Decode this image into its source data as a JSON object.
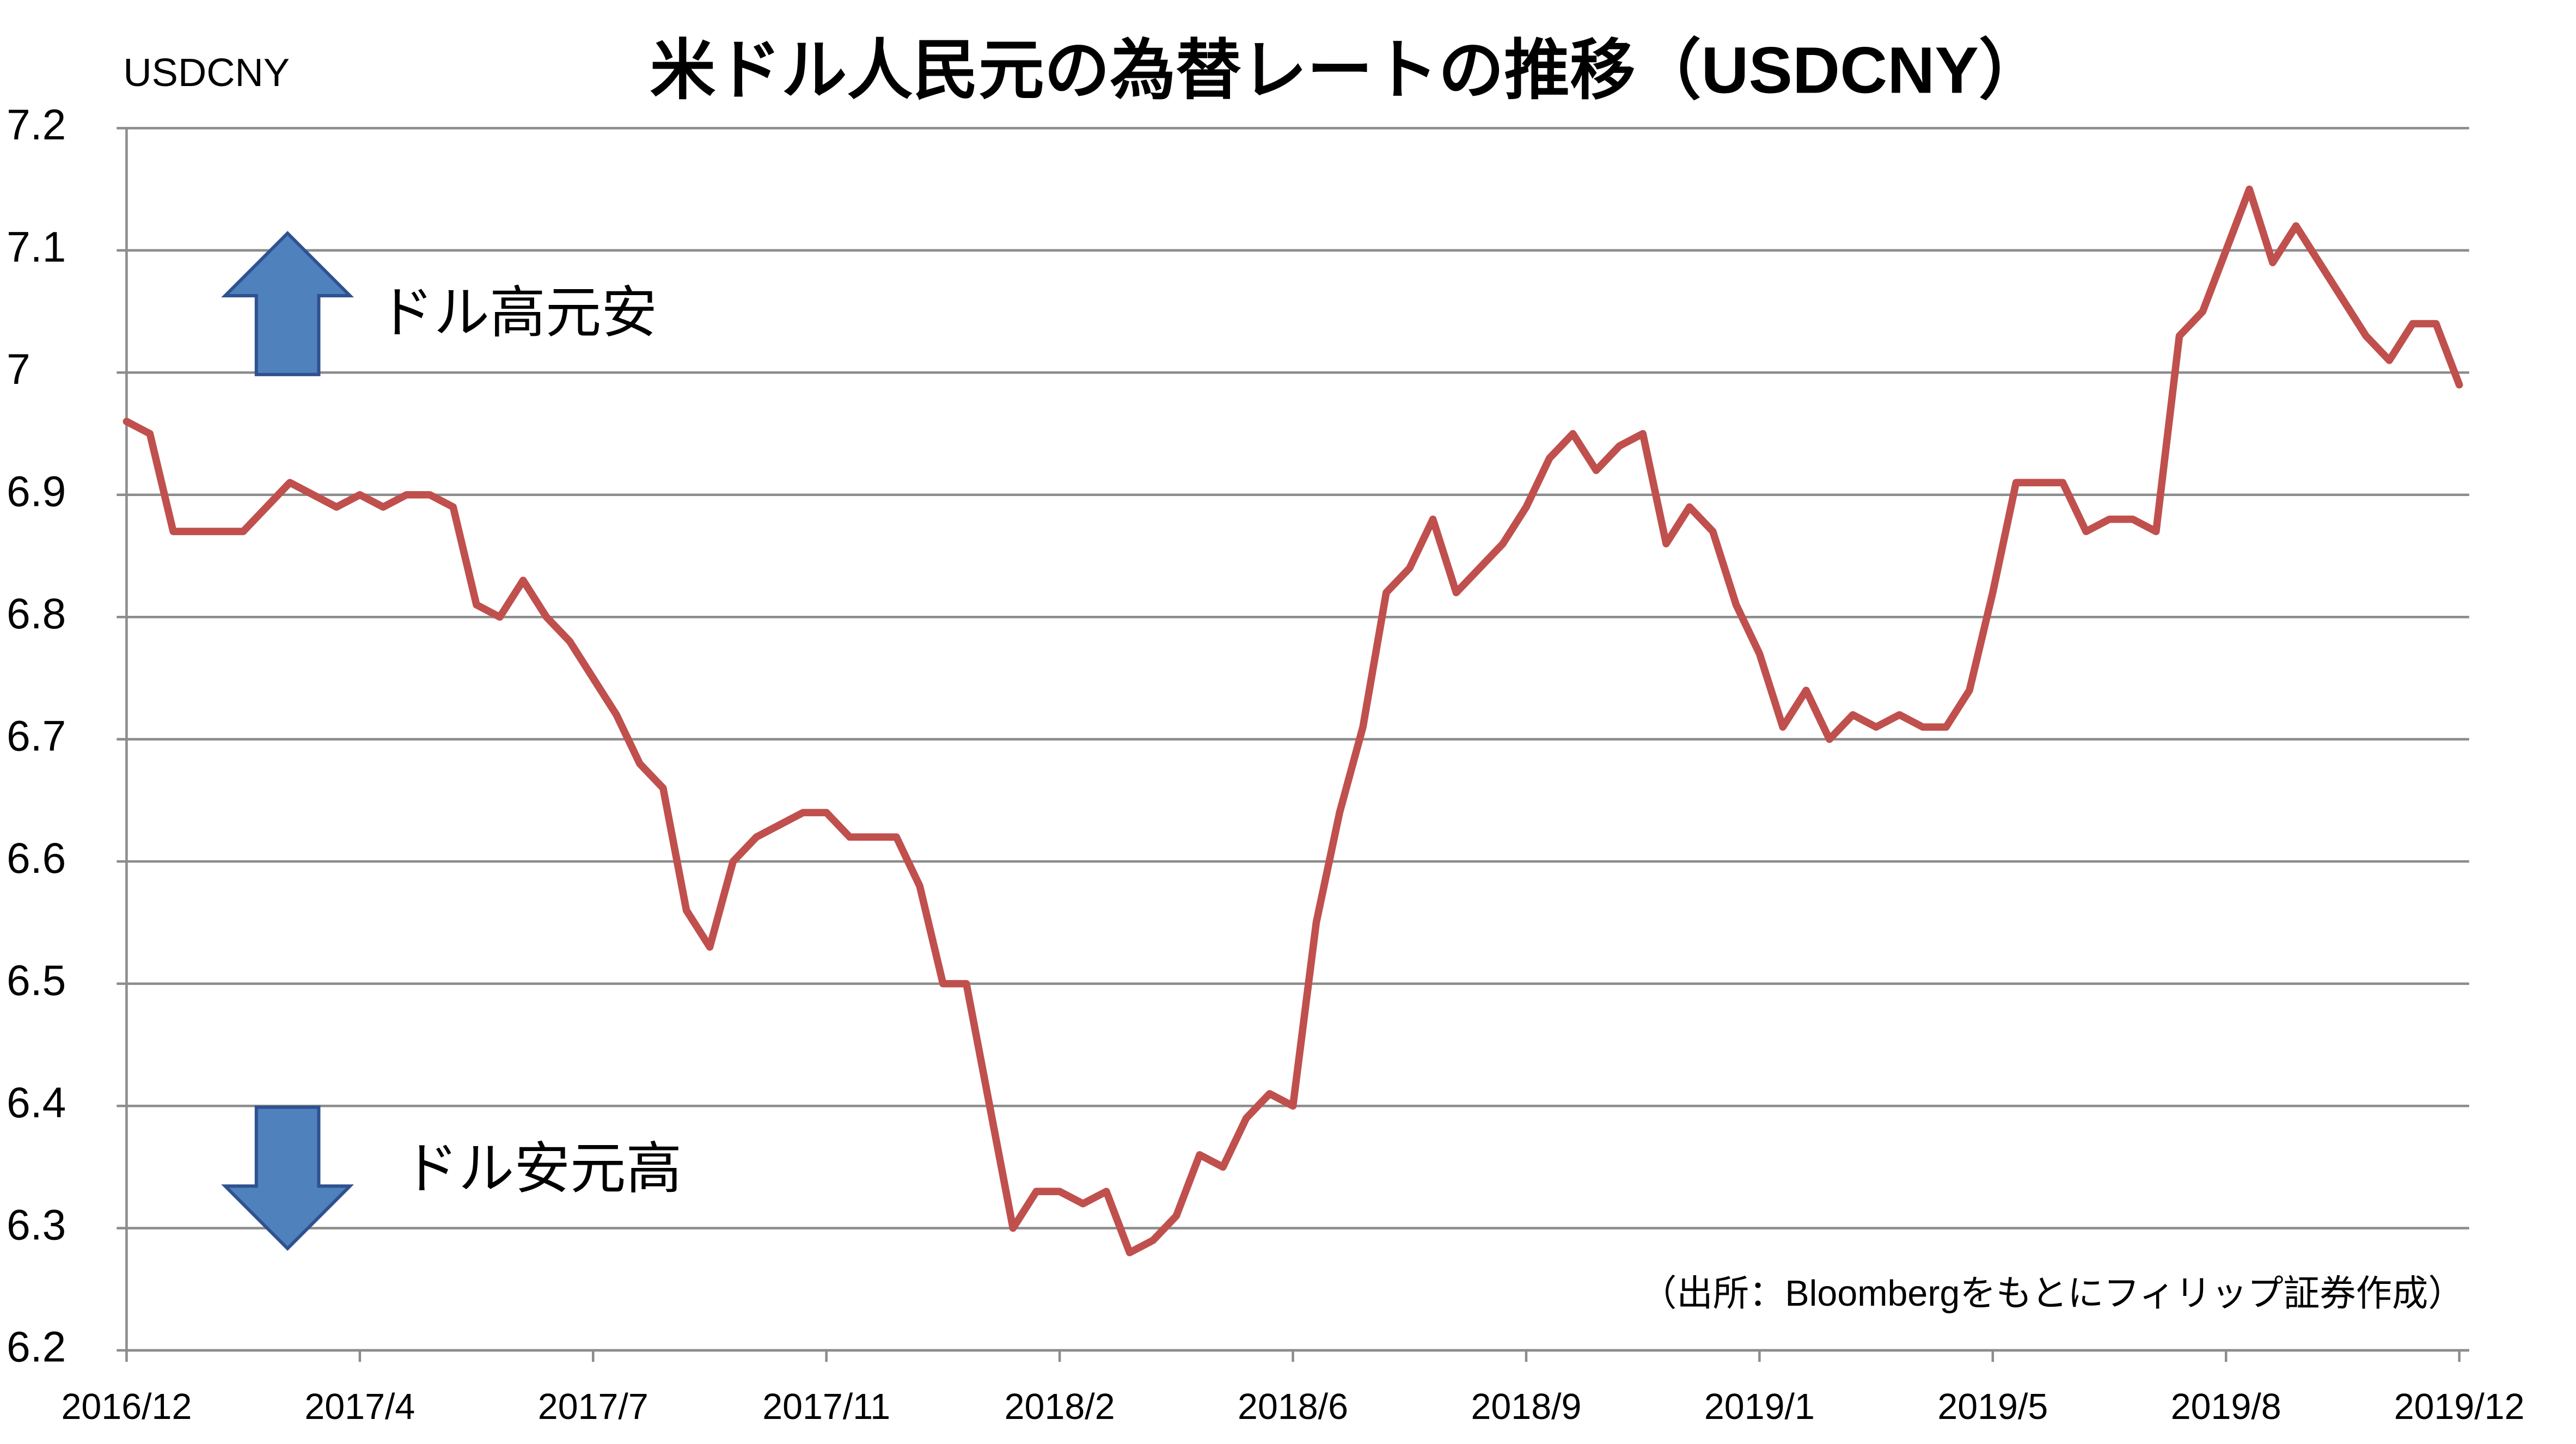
{
  "chart_data": {
    "type": "line",
    "title": "米ドル人民元の為替レートの推移（USDCNY）",
    "y_label": "USDCNY",
    "annotations": [
      "ドル高元安",
      "ドル安元高"
    ],
    "source": "（出所：Bloombergをもとにフィリップ証券作成）",
    "categories": [
      "2016/12",
      null,
      null,
      null,
      null,
      null,
      null,
      null,
      null,
      null,
      "2017/4",
      null,
      null,
      null,
      null,
      null,
      null,
      null,
      null,
      null,
      "2017/7",
      null,
      null,
      null,
      null,
      null,
      null,
      null,
      null,
      null,
      "2017/11",
      null,
      null,
      null,
      null,
      null,
      null,
      null,
      null,
      null,
      "2018/2",
      null,
      null,
      null,
      null,
      null,
      null,
      null,
      null,
      null,
      "2018/6",
      null,
      null,
      null,
      null,
      null,
      null,
      null,
      null,
      null,
      "2018/9",
      null,
      null,
      null,
      null,
      null,
      null,
      null,
      null,
      null,
      "2019/1",
      null,
      null,
      null,
      null,
      null,
      null,
      null,
      null,
      null,
      "2019/5",
      null,
      null,
      null,
      null,
      null,
      null,
      null,
      null,
      null,
      "2019/8",
      null,
      null,
      null,
      null,
      null,
      null,
      null,
      null,
      null,
      "2019/12"
    ],
    "series": [
      {
        "name": "USDCNY",
        "color": "#c0504d",
        "values": [
          6.96,
          6.95,
          6.87,
          6.87,
          6.87,
          6.87,
          6.89,
          6.91,
          6.9,
          6.89,
          6.9,
          6.89,
          6.9,
          6.9,
          6.89,
          6.81,
          6.8,
          6.83,
          6.8,
          6.78,
          6.75,
          6.72,
          6.68,
          6.66,
          6.56,
          6.53,
          6.6,
          6.62,
          6.63,
          6.64,
          6.64,
          6.62,
          6.62,
          6.62,
          6.58,
          6.5,
          6.5,
          6.4,
          6.3,
          6.33,
          6.33,
          6.32,
          6.33,
          6.28,
          6.29,
          6.31,
          6.36,
          6.35,
          6.39,
          6.41,
          6.4,
          6.55,
          6.64,
          6.71,
          6.82,
          6.84,
          6.88,
          6.82,
          6.84,
          6.86,
          6.89,
          6.93,
          6.95,
          6.92,
          6.94,
          6.95,
          6.86,
          6.89,
          6.87,
          6.81,
          6.77,
          6.71,
          6.74,
          6.7,
          6.72,
          6.71,
          6.72,
          6.71,
          6.71,
          6.74,
          6.82,
          6.91,
          6.91,
          6.91,
          6.87,
          6.88,
          6.88,
          6.87,
          7.03,
          7.05,
          7.1,
          7.15,
          7.09,
          7.12,
          7.09,
          7.06,
          7.03,
          7.01,
          7.04,
          7.04,
          6.99
        ]
      }
    ],
    "ylim": [
      6.2,
      7.2
    ],
    "yticks": [
      6.2,
      6.3,
      6.4,
      6.5,
      6.6,
      6.7,
      6.8,
      6.9,
      7,
      7.1,
      7.2
    ],
    "grid": true
  }
}
